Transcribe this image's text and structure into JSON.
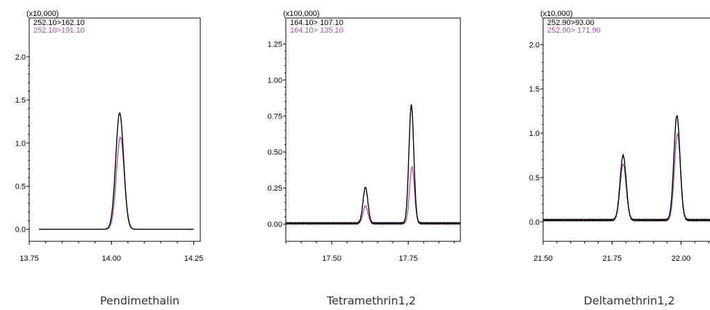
{
  "chart_data": [
    {
      "type": "line",
      "caption": "Pendimethalin",
      "multiplier_label": "(x10,000)",
      "xlim": [
        13.75,
        14.27
      ],
      "ylim": [
        -0.14,
        2.45
      ],
      "x_ticks": [
        13.75,
        14.0,
        14.25
      ],
      "x_tick_labels": [
        "13.75",
        "14.00",
        "14.25"
      ],
      "y_ticks": [
        0.0,
        0.5,
        1.0,
        1.5,
        2.0
      ],
      "y_tick_labels": [
        "0.0",
        "0.5",
        "1.0",
        "1.5",
        "2.0"
      ],
      "x_range": [
        13.78,
        14.25
      ],
      "baseline": 0.0,
      "series": [
        {
          "name": "252.10>162.10",
          "color": "#000000",
          "peaks": [
            {
              "x": 14.025,
              "height": 1.35,
              "sigma": 0.012
            }
          ]
        },
        {
          "name": "252.10>191.10",
          "color": "#b050b0",
          "peaks": [
            {
              "x": 14.027,
              "height": 1.07,
              "sigma": 0.012
            }
          ]
        }
      ]
    },
    {
      "type": "line",
      "caption": "Tetramethrin1,2",
      "multiplier_label": "(x100,000)",
      "xlim": [
        17.35,
        17.92
      ],
      "ylim": [
        -0.12,
        1.43
      ],
      "x_ticks": [
        17.5,
        17.75
      ],
      "x_tick_labels": [
        "17.50",
        "17.75"
      ],
      "y_ticks": [
        0.0,
        0.25,
        0.5,
        0.75,
        1.0,
        1.25
      ],
      "y_tick_labels": [
        "0.00",
        "0.25",
        "0.50",
        "0.75",
        "1.00",
        "1.25"
      ],
      "x_range": [
        17.35,
        17.92
      ],
      "baseline": 0.005,
      "series": [
        {
          "name": "164.10> 107.10",
          "color": "#000000",
          "peaks": [
            {
              "x": 17.61,
              "height": 0.25,
              "sigma": 0.008
            },
            {
              "x": 17.76,
              "height": 0.82,
              "sigma": 0.008
            }
          ]
        },
        {
          "name": "164.10> 135.10",
          "color": "#b050b0",
          "peaks": [
            {
              "x": 17.61,
              "height": 0.12,
              "sigma": 0.008
            },
            {
              "x": 17.762,
              "height": 0.39,
              "sigma": 0.008
            }
          ]
        }
      ]
    },
    {
      "type": "line",
      "caption": "Deltamethrin1,2",
      "multiplier_label": "(x10,000)",
      "xlim": [
        21.5,
        22.12
      ],
      "ylim": [
        -0.22,
        2.3
      ],
      "x_ticks": [
        21.5,
        21.75,
        22.0
      ],
      "x_tick_labels": [
        "21.50",
        "21.75",
        "22.00"
      ],
      "y_ticks": [
        0.0,
        0.5,
        1.0,
        1.5,
        2.0
      ],
      "y_tick_labels": [
        "0.0",
        "0.5",
        "1.0",
        "1.5",
        "2.0"
      ],
      "x_range": [
        21.5,
        22.12
      ],
      "baseline": 0.02,
      "series": [
        {
          "name": "252.90>93.00",
          "color": "#000000",
          "peaks": [
            {
              "x": 21.79,
              "height": 0.73,
              "sigma": 0.011
            },
            {
              "x": 21.985,
              "height": 1.18,
              "sigma": 0.011
            }
          ]
        },
        {
          "name": "252.90> 171.90",
          "color": "#b050b0",
          "peaks": [
            {
              "x": 21.79,
              "height": 0.63,
              "sigma": 0.011
            },
            {
              "x": 21.987,
              "height": 0.97,
              "sigma": 0.011
            }
          ]
        }
      ]
    }
  ]
}
